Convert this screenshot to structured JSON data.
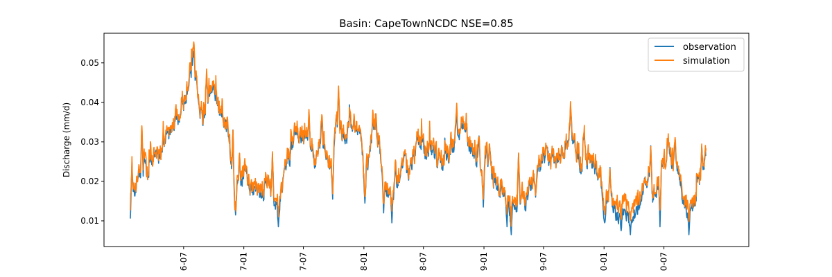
{
  "chart_data": {
    "type": "line",
    "title": "Basin: CapeTownNCDC NSE=0.85",
    "xlabel": "",
    "ylabel": "Discharge (mm/d)",
    "ylim": [
      0.0035,
      0.0575
    ],
    "yticks": [
      0.01,
      0.02,
      0.03,
      0.04,
      0.05
    ],
    "ytick_labels": [
      "0.01",
      "0.02",
      "0.03",
      "0.04",
      "0.05"
    ],
    "xlim_days": [
      -60,
      1900
    ],
    "xticks": [
      {
        "label": "6-07",
        "day": 182
      },
      {
        "label": "7-01",
        "day": 365
      },
      {
        "label": "7-07",
        "day": 546
      },
      {
        "label": "8-01",
        "day": 730
      },
      {
        "label": "8-07",
        "day": 911
      },
      {
        "label": "9-01",
        "day": 1095
      },
      {
        "label": "9-07",
        "day": 1276
      },
      {
        "label": "0-01",
        "day": 1460
      },
      {
        "label": "0-07",
        "day": 1642
      }
    ],
    "grid": false,
    "legend": "top-right",
    "colors": {
      "observation": "#1f77b4",
      "simulation": "#ff7f0e"
    },
    "anchors": [
      [
        20,
        0.012
      ],
      [
        30,
        0.016
      ],
      [
        45,
        0.021
      ],
      [
        60,
        0.024
      ],
      [
        75,
        0.022
      ],
      [
        90,
        0.026
      ],
      [
        110,
        0.027
      ],
      [
        130,
        0.031
      ],
      [
        150,
        0.034
      ],
      [
        170,
        0.037
      ],
      [
        185,
        0.04
      ],
      [
        200,
        0.045
      ],
      [
        212,
        0.051
      ],
      [
        225,
        0.041
      ],
      [
        240,
        0.036
      ],
      [
        255,
        0.04
      ],
      [
        270,
        0.043
      ],
      [
        285,
        0.039
      ],
      [
        300,
        0.036
      ],
      [
        315,
        0.033
      ],
      [
        325,
        0.027
      ],
      [
        335,
        0.015
      ],
      [
        350,
        0.018
      ],
      [
        365,
        0.022
      ],
      [
        380,
        0.019
      ],
      [
        395,
        0.017
      ],
      [
        410,
        0.016
      ],
      [
        425,
        0.018
      ],
      [
        440,
        0.02
      ],
      [
        455,
        0.016
      ],
      [
        470,
        0.013
      ],
      [
        480,
        0.018
      ],
      [
        495,
        0.024
      ],
      [
        510,
        0.028
      ],
      [
        525,
        0.032
      ],
      [
        540,
        0.03
      ],
      [
        555,
        0.032
      ],
      [
        570,
        0.027
      ],
      [
        585,
        0.025
      ],
      [
        600,
        0.03
      ],
      [
        615,
        0.028
      ],
      [
        630,
        0.022
      ],
      [
        645,
        0.035
      ],
      [
        660,
        0.033
      ],
      [
        675,
        0.031
      ],
      [
        690,
        0.034
      ],
      [
        705,
        0.033
      ],
      [
        720,
        0.031
      ],
      [
        733,
        0.019
      ],
      [
        745,
        0.026
      ],
      [
        760,
        0.034
      ],
      [
        775,
        0.029
      ],
      [
        790,
        0.02
      ],
      [
        805,
        0.017
      ],
      [
        820,
        0.018
      ],
      [
        835,
        0.021
      ],
      [
        850,
        0.024
      ],
      [
        865,
        0.023
      ],
      [
        880,
        0.026
      ],
      [
        895,
        0.03
      ],
      [
        910,
        0.028
      ],
      [
        925,
        0.027
      ],
      [
        940,
        0.027
      ],
      [
        955,
        0.026
      ],
      [
        970,
        0.024
      ],
      [
        985,
        0.026
      ],
      [
        1000,
        0.028
      ],
      [
        1015,
        0.031
      ],
      [
        1030,
        0.033
      ],
      [
        1045,
        0.031
      ],
      [
        1060,
        0.028
      ],
      [
        1075,
        0.025
      ],
      [
        1090,
        0.022
      ],
      [
        1105,
        0.027
      ],
      [
        1120,
        0.021
      ],
      [
        1135,
        0.018
      ],
      [
        1150,
        0.017
      ],
      [
        1165,
        0.014
      ],
      [
        1180,
        0.012
      ],
      [
        1195,
        0.013
      ],
      [
        1210,
        0.016
      ],
      [
        1225,
        0.015
      ],
      [
        1240,
        0.018
      ],
      [
        1255,
        0.023
      ],
      [
        1270,
        0.026
      ],
      [
        1285,
        0.027
      ],
      [
        1300,
        0.025
      ],
      [
        1315,
        0.024
      ],
      [
        1330,
        0.026
      ],
      [
        1345,
        0.03
      ],
      [
        1360,
        0.031
      ],
      [
        1375,
        0.029
      ],
      [
        1390,
        0.024
      ],
      [
        1405,
        0.026
      ],
      [
        1420,
        0.025
      ],
      [
        1435,
        0.023
      ],
      [
        1450,
        0.02
      ],
      [
        1462,
        0.012
      ],
      [
        1475,
        0.017
      ],
      [
        1490,
        0.013
      ],
      [
        1505,
        0.011
      ],
      [
        1520,
        0.012
      ],
      [
        1535,
        0.01
      ],
      [
        1550,
        0.011
      ],
      [
        1565,
        0.014
      ],
      [
        1580,
        0.018
      ],
      [
        1595,
        0.02
      ],
      [
        1610,
        0.016
      ],
      [
        1625,
        0.019
      ],
      [
        1640,
        0.024
      ],
      [
        1655,
        0.027
      ],
      [
        1670,
        0.025
      ],
      [
        1685,
        0.024
      ],
      [
        1700,
        0.015
      ],
      [
        1715,
        0.011
      ],
      [
        1730,
        0.013
      ],
      [
        1745,
        0.019
      ],
      [
        1760,
        0.023
      ],
      [
        1770,
        0.026
      ]
    ],
    "peaks": [
      [
        25,
        0.025
      ],
      [
        55,
        0.0335
      ],
      [
        196,
        0.043
      ],
      [
        213,
        0.053
      ],
      [
        236,
        0.039
      ],
      [
        252,
        0.047
      ],
      [
        268,
        0.0425
      ],
      [
        332,
        0.033
      ],
      [
        340,
        0.0115
      ],
      [
        352,
        0.027
      ],
      [
        372,
        0.0235
      ],
      [
        452,
        0.027
      ],
      [
        470,
        0.0085
      ],
      [
        520,
        0.0335
      ],
      [
        563,
        0.0375
      ],
      [
        602,
        0.0355
      ],
      [
        635,
        0.0155
      ],
      [
        653,
        0.0428
      ],
      [
        700,
        0.036
      ],
      [
        733,
        0.0145
      ],
      [
        757,
        0.036
      ],
      [
        790,
        0.012
      ],
      [
        815,
        0.0095
      ],
      [
        826,
        0.025
      ],
      [
        891,
        0.0315
      ],
      [
        958,
        0.028
      ],
      [
        1012,
        0.038
      ],
      [
        1080,
        0.0315
      ],
      [
        1093,
        0.0135
      ],
      [
        1112,
        0.029
      ],
      [
        1165,
        0.0085
      ],
      [
        1178,
        0.0065
      ],
      [
        1200,
        0.027
      ],
      [
        1252,
        0.016
      ],
      [
        1302,
        0.0285
      ],
      [
        1358,
        0.039
      ],
      [
        1400,
        0.0325
      ],
      [
        1462,
        0.0095
      ],
      [
        1478,
        0.0235
      ],
      [
        1512,
        0.0075
      ],
      [
        1540,
        0.0065
      ],
      [
        1602,
        0.029
      ],
      [
        1630,
        0.0085
      ],
      [
        1655,
        0.031
      ],
      [
        1676,
        0.0305
      ],
      [
        1718,
        0.0065
      ],
      [
        1757,
        0.029
      ]
    ]
  },
  "legend": {
    "entries": [
      {
        "label": "observation",
        "color": "#1f77b4"
      },
      {
        "label": "simulation",
        "color": "#ff7f0e"
      }
    ]
  }
}
